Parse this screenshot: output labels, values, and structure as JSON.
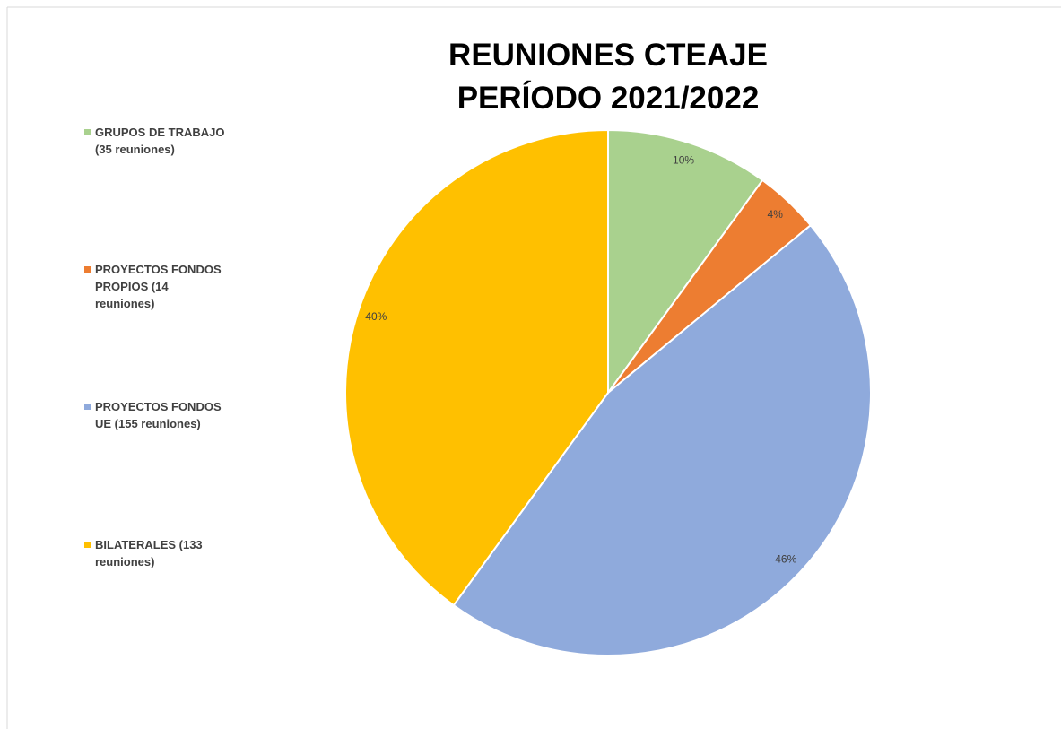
{
  "chart_data": {
    "type": "pie",
    "title": "REUNIONES CTEAJE\nPERÍODO 2021/2022",
    "categories": [
      "GRUPOS DE TRABAJO (35 reuniones)",
      "PROYECTOS FONDOS PROPIOS (14 reuniones)",
      "PROYECTOS FONDOS UE (155 reuniones)",
      "BILATERALES (133 reuniones)"
    ],
    "values": [
      10,
      4,
      46,
      40
    ],
    "value_labels": [
      "10%",
      "4%",
      "46%",
      "40%"
    ],
    "colors": [
      "#a9d18e",
      "#ed7d31",
      "#8faadc",
      "#ffc000"
    ],
    "legend": "left"
  }
}
